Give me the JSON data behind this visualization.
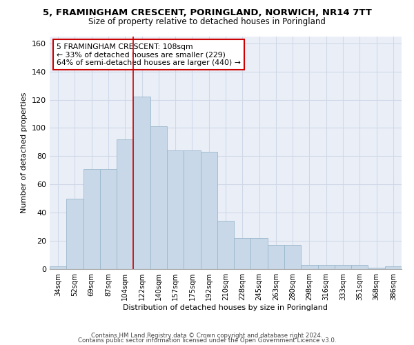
{
  "title": "5, FRAMINGHAM CRESCENT, PORINGLAND, NORWICH, NR14 7TT",
  "subtitle": "Size of property relative to detached houses in Poringland",
  "xlabel": "Distribution of detached houses by size in Poringland",
  "ylabel": "Number of detached properties",
  "bar_color": "#c8d8e8",
  "bar_edge_color": "#9ab8cc",
  "categories": [
    "34sqm",
    "52sqm",
    "69sqm",
    "87sqm",
    "104sqm",
    "122sqm",
    "140sqm",
    "157sqm",
    "175sqm",
    "192sqm",
    "210sqm",
    "228sqm",
    "245sqm",
    "263sqm",
    "280sqm",
    "298sqm",
    "316sqm",
    "333sqm",
    "351sqm",
    "368sqm",
    "386sqm"
  ],
  "values": [
    2,
    50,
    71,
    71,
    92,
    122,
    101,
    84,
    84,
    83,
    34,
    22,
    22,
    17,
    17,
    3,
    3,
    3,
    3,
    1,
    2
  ],
  "annotation_title": "5 FRAMINGHAM CRESCENT: 108sqm",
  "annotation_line1": "← 33% of detached houses are smaller (229)",
  "annotation_line2": "64% of semi-detached houses are larger (440) →",
  "red_line_color": "#cc0000",
  "annotation_box_color": "#ffffff",
  "annotation_box_edge": "#cc0000",
  "ylim": [
    0,
    165
  ],
  "yticks": [
    0,
    20,
    40,
    60,
    80,
    100,
    120,
    140,
    160
  ],
  "grid_color": "#d0d8e8",
  "bg_color": "#eaeff7",
  "footer1": "Contains HM Land Registry data © Crown copyright and database right 2024.",
  "footer2": "Contains public sector information licensed under the Open Government Licence v3.0."
}
